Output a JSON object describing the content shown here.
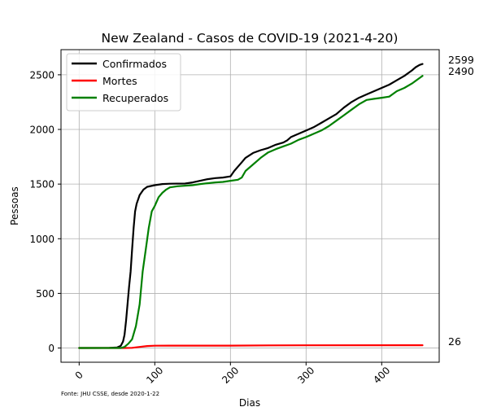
{
  "chart_data": {
    "type": "line",
    "title": "New Zealand - Casos de COVID-19 (2021-4-20)",
    "xlabel": "Dias",
    "ylabel": "Pessoas",
    "xlim": [
      -24,
      476
    ],
    "ylim": [
      -130,
      2730
    ],
    "xticks": [
      0,
      100,
      200,
      300,
      400
    ],
    "yticks": [
      0,
      500,
      1000,
      1500,
      2000,
      2500
    ],
    "grid": true,
    "legend_position": "top-left",
    "source_note": "Fonte: JHU CSSE, desde 2020-1-22",
    "end_labels": [
      "2599",
      "2490",
      "26"
    ],
    "colors": {
      "Confirmados": "#000000",
      "Mortes": "#ff0000",
      "Recuperados": "#008000"
    },
    "series": [
      {
        "name": "Confirmados",
        "points": [
          [
            0,
            0
          ],
          [
            40,
            1
          ],
          [
            50,
            5
          ],
          [
            55,
            20
          ],
          [
            58,
            60
          ],
          [
            60,
            120
          ],
          [
            62,
            250
          ],
          [
            64,
            400
          ],
          [
            66,
            560
          ],
          [
            68,
            700
          ],
          [
            70,
            900
          ],
          [
            72,
            1100
          ],
          [
            74,
            1250
          ],
          [
            76,
            1320
          ],
          [
            80,
            1400
          ],
          [
            85,
            1450
          ],
          [
            90,
            1475
          ],
          [
            100,
            1490
          ],
          [
            110,
            1500
          ],
          [
            120,
            1503
          ],
          [
            140,
            1505
          ],
          [
            150,
            1515
          ],
          [
            160,
            1530
          ],
          [
            170,
            1545
          ],
          [
            180,
            1555
          ],
          [
            190,
            1560
          ],
          [
            200,
            1570
          ],
          [
            205,
            1620
          ],
          [
            210,
            1660
          ],
          [
            215,
            1700
          ],
          [
            220,
            1740
          ],
          [
            230,
            1785
          ],
          [
            240,
            1810
          ],
          [
            250,
            1830
          ],
          [
            260,
            1860
          ],
          [
            270,
            1880
          ],
          [
            275,
            1900
          ],
          [
            280,
            1930
          ],
          [
            290,
            1960
          ],
          [
            300,
            1990
          ],
          [
            310,
            2020
          ],
          [
            320,
            2060
          ],
          [
            330,
            2100
          ],
          [
            340,
            2140
          ],
          [
            350,
            2200
          ],
          [
            360,
            2250
          ],
          [
            370,
            2290
          ],
          [
            380,
            2320
          ],
          [
            390,
            2350
          ],
          [
            400,
            2380
          ],
          [
            410,
            2410
          ],
          [
            420,
            2450
          ],
          [
            430,
            2490
          ],
          [
            440,
            2540
          ],
          [
            445,
            2570
          ],
          [
            450,
            2590
          ],
          [
            454,
            2599
          ]
        ]
      },
      {
        "name": "Mortes",
        "points": [
          [
            0,
            0
          ],
          [
            60,
            0
          ],
          [
            70,
            2
          ],
          [
            80,
            10
          ],
          [
            90,
            18
          ],
          [
            100,
            21
          ],
          [
            120,
            22
          ],
          [
            200,
            22
          ],
          [
            250,
            24
          ],
          [
            300,
            25
          ],
          [
            454,
            26
          ]
        ]
      },
      {
        "name": "Recuperados",
        "points": [
          [
            0,
            0
          ],
          [
            55,
            0
          ],
          [
            60,
            10
          ],
          [
            65,
            40
          ],
          [
            70,
            80
          ],
          [
            75,
            200
          ],
          [
            80,
            400
          ],
          [
            84,
            700
          ],
          [
            88,
            900
          ],
          [
            92,
            1100
          ],
          [
            96,
            1250
          ],
          [
            100,
            1300
          ],
          [
            105,
            1380
          ],
          [
            110,
            1420
          ],
          [
            115,
            1450
          ],
          [
            120,
            1470
          ],
          [
            130,
            1480
          ],
          [
            150,
            1490
          ],
          [
            160,
            1500
          ],
          [
            180,
            1515
          ],
          [
            190,
            1520
          ],
          [
            200,
            1530
          ],
          [
            210,
            1540
          ],
          [
            215,
            1560
          ],
          [
            220,
            1620
          ],
          [
            230,
            1680
          ],
          [
            240,
            1740
          ],
          [
            250,
            1790
          ],
          [
            260,
            1820
          ],
          [
            270,
            1845
          ],
          [
            280,
            1870
          ],
          [
            290,
            1905
          ],
          [
            300,
            1930
          ],
          [
            310,
            1960
          ],
          [
            320,
            1990
          ],
          [
            330,
            2030
          ],
          [
            340,
            2080
          ],
          [
            350,
            2130
          ],
          [
            360,
            2180
          ],
          [
            370,
            2230
          ],
          [
            380,
            2270
          ],
          [
            390,
            2280
          ],
          [
            400,
            2290
          ],
          [
            410,
            2300
          ],
          [
            420,
            2350
          ],
          [
            430,
            2380
          ],
          [
            440,
            2420
          ],
          [
            450,
            2470
          ],
          [
            454,
            2490
          ]
        ]
      }
    ]
  }
}
